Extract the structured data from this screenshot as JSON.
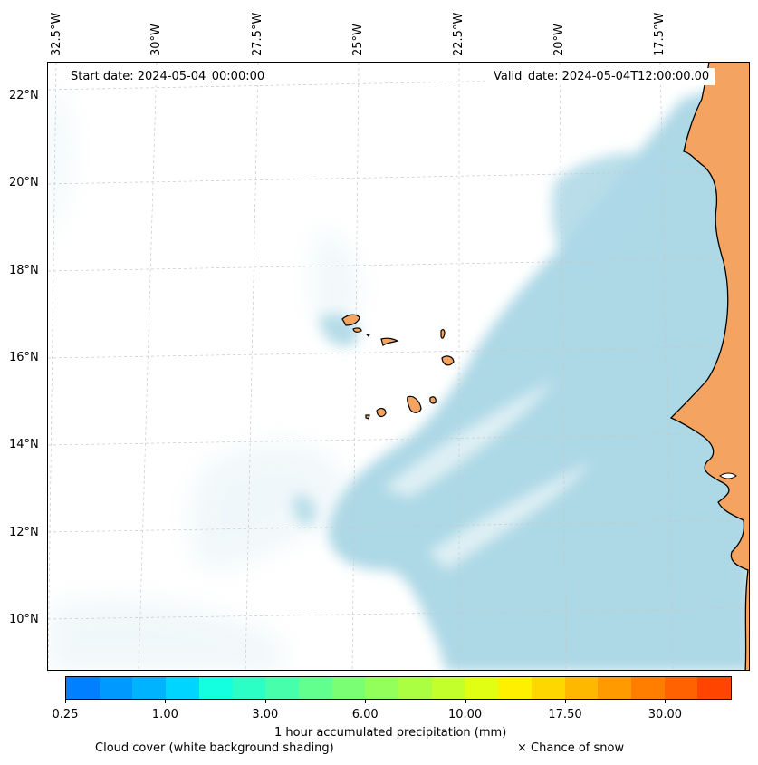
{
  "map": {
    "start_date": "Start date: 2024-05-04_00:00:00",
    "valid_date": "Valid_date: 2024-05-04T12:00:00.00",
    "longitude_labels": [
      "32.5°W",
      "30°W",
      "27.5°W",
      "25°W",
      "22.5°W",
      "20°W",
      "17.5°W"
    ],
    "latitude_labels": [
      "22°N",
      "20°N",
      "18°N",
      "16°N",
      "14°N",
      "12°N",
      "10°N"
    ],
    "land_color": "#f4a460",
    "cloud_color": "#add8e6",
    "ocean_color": "#ffffff"
  },
  "colorbar": {
    "label": "1 hour accumulated precipitation (mm)",
    "tick_labels": [
      "0.25",
      "1.00",
      "3.00",
      "6.00",
      "10.00",
      "17.50",
      "30.00"
    ],
    "colors": [
      "#0080ff",
      "#0099ff",
      "#00b3ff",
      "#00d5ff",
      "#13ffe0",
      "#2bffc6",
      "#47ffaa",
      "#63ff8e",
      "#7aff74",
      "#93ff5a",
      "#abff43",
      "#c3ff2a",
      "#e0ff13",
      "#fff000",
      "#ffd700",
      "#ffb800",
      "#ff9a00",
      "#ff7e00",
      "#ff6200",
      "#ff4500"
    ]
  },
  "legend": {
    "cloud_cover": "Cloud cover (white background shading)",
    "snow": "× Chance of snow"
  }
}
